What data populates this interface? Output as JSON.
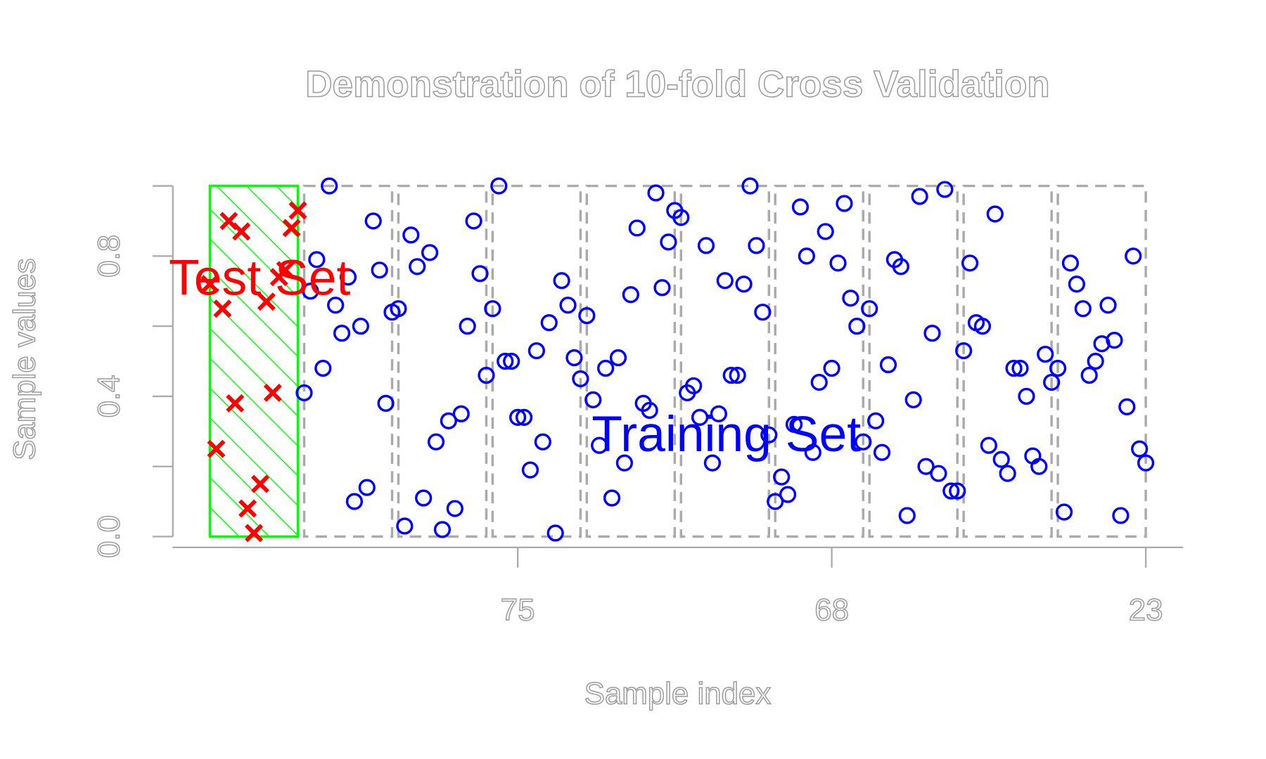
{
  "chart_data": {
    "type": "scatter",
    "title": "Demonstration of 10-fold Cross Validation",
    "x_label": "Sample index",
    "y_label": "Sample values",
    "xlim": [
      -4.96,
      155.96
    ],
    "ylim": [
      -0.04,
      1.04
    ],
    "xticks": [
      {
        "value": 50,
        "label": "75"
      },
      {
        "value": 100,
        "label": "68"
      },
      {
        "value": 150,
        "label": "23"
      }
    ],
    "yticks": [
      {
        "value": 0,
        "label": "0.0"
      },
      {
        "value": 0.2,
        "label": null
      },
      {
        "value": 0.4,
        "label": "0.4"
      },
      {
        "value": 0.6,
        "label": null
      },
      {
        "value": 0.8,
        "label": "0.8"
      },
      {
        "value": 1.0,
        "label": null
      }
    ],
    "series": [
      {
        "name": "Test Set",
        "color": "#ff0000",
        "marker": "x",
        "fold_color": "#00ff00",
        "x": [
          1,
          2,
          3,
          4,
          5,
          6,
          7,
          8,
          9,
          10,
          11,
          12,
          13,
          14,
          15
        ],
        "values": [
          0.72,
          0.25,
          0.65,
          0.9,
          0.38,
          0.87,
          0.08,
          0.01,
          0.15,
          0.67,
          0.41,
          0.74,
          0.76,
          0.88,
          0.93
        ]
      },
      {
        "name": "Training Set",
        "color": "#0000ff",
        "marker": "circle",
        "fold_color": "#aaaaaa",
        "x": [
          16,
          17,
          18,
          19,
          20,
          21,
          22,
          23,
          24,
          25,
          26,
          27,
          28,
          29,
          30,
          31,
          32,
          33,
          34,
          35,
          36,
          37,
          38,
          39,
          40,
          41,
          42,
          43,
          44,
          45,
          46,
          47,
          48,
          49,
          50,
          51,
          52,
          53,
          54,
          55,
          56,
          57,
          58,
          59,
          60,
          61,
          62,
          63,
          64,
          65,
          66,
          67,
          68,
          69,
          70,
          71,
          72,
          73,
          74,
          75,
          76,
          77,
          78,
          79,
          80,
          81,
          82,
          83,
          84,
          85,
          86,
          87,
          88,
          89,
          90,
          91,
          92,
          93,
          94,
          95,
          96,
          97,
          98,
          99,
          100,
          101,
          102,
          103,
          104,
          105,
          106,
          107,
          108,
          109,
          110,
          111,
          112,
          113,
          114,
          115,
          116,
          117,
          118,
          119,
          120,
          121,
          122,
          123,
          124,
          125,
          126,
          127,
          128,
          129,
          130,
          131,
          132,
          133,
          134,
          135,
          136,
          137,
          138,
          139,
          140,
          141,
          142,
          143,
          144,
          145,
          146,
          147,
          148,
          149,
          150
        ],
        "values": [
          0.41,
          0.7,
          0.79,
          0.48,
          1.0,
          0.66,
          0.58,
          0.74,
          0.1,
          0.6,
          0.14,
          0.9,
          0.76,
          0.38,
          0.64,
          0.65,
          0.03,
          0.86,
          0.77,
          0.11,
          0.81,
          0.27,
          0.02,
          0.33,
          0.08,
          0.35,
          0.6,
          0.9,
          0.75,
          0.46,
          0.65,
          1.0,
          0.5,
          0.5,
          0.34,
          0.34,
          0.19,
          0.53,
          0.27,
          0.61,
          0.01,
          0.73,
          0.66,
          0.51,
          0.45,
          0.63,
          0.39,
          0.26,
          0.48,
          0.11,
          0.51,
          0.21,
          0.69,
          0.88,
          0.38,
          0.36,
          0.98,
          0.71,
          0.84,
          0.93,
          0.91,
          0.41,
          0.43,
          0.34,
          0.83,
          0.21,
          0.35,
          0.73,
          0.46,
          0.46,
          0.72,
          1.0,
          0.83,
          0.64,
          0.29,
          0.1,
          0.17,
          0.12,
          0.32,
          0.94,
          0.8,
          0.24,
          0.44,
          0.87,
          0.48,
          0.78,
          0.95,
          0.68,
          0.6,
          0.27,
          0.65,
          0.33,
          0.24,
          0.49,
          0.79,
          0.77,
          0.06,
          0.39,
          0.97,
          0.2,
          0.58,
          0.18,
          0.99,
          0.13,
          0.13,
          0.53,
          0.78,
          0.61,
          0.6,
          0.26,
          0.92,
          0.22,
          0.18,
          0.48,
          0.48,
          0.4,
          0.23,
          0.2,
          0.52,
          0.44,
          0.48,
          0.07,
          0.78,
          0.72,
          0.65,
          0.46,
          0.5,
          0.55,
          0.66,
          0.56,
          0.06,
          0.37,
          0.8,
          0.25,
          0.21
        ]
      }
    ]
  }
}
